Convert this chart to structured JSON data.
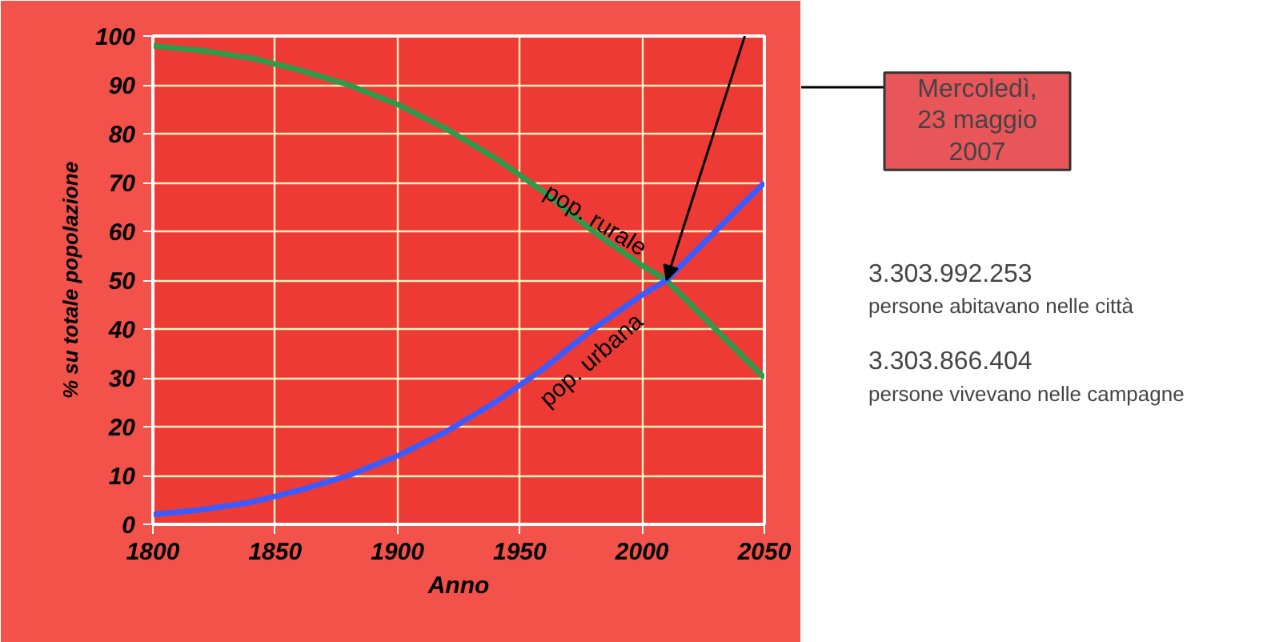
{
  "chart_data": {
    "type": "line",
    "xlabel": "Anno",
    "ylabel": "% su totale popolazione",
    "x": [
      1800,
      1820,
      1840,
      1860,
      1880,
      1900,
      1920,
      1940,
      1960,
      1980,
      2000,
      2010,
      2020,
      2030,
      2040,
      2050
    ],
    "series": [
      {
        "name": "pop. rurale",
        "color": "#2e9a4a",
        "values": [
          98,
          97,
          95.5,
          93,
          90,
          86,
          81,
          75,
          68,
          60,
          53,
          50,
          45,
          40,
          35,
          30
        ]
      },
      {
        "name": "pop. urbana",
        "color": "#3b5bff",
        "values": [
          2,
          3,
          4.5,
          7,
          10,
          14,
          19,
          25,
          32,
          40,
          47,
          50,
          55,
          60,
          65,
          70
        ]
      }
    ],
    "xlim": [
      1800,
      2050
    ],
    "xticks": [
      1800,
      1850,
      1900,
      1950,
      2000,
      2050
    ],
    "ylim": [
      0,
      100
    ],
    "yticks": [
      0,
      10,
      20,
      30,
      40,
      50,
      60,
      70,
      80,
      90,
      100
    ],
    "grid": true,
    "legend": false,
    "line_style": "solid",
    "marker": "none",
    "annotations": [
      "Mercoledì,\n23 maggio\n2007",
      "3.303.992.253",
      "persone abitavano nelle città",
      "3.303.866.404",
      "persone vivevano nelle campagne"
    ]
  }
}
